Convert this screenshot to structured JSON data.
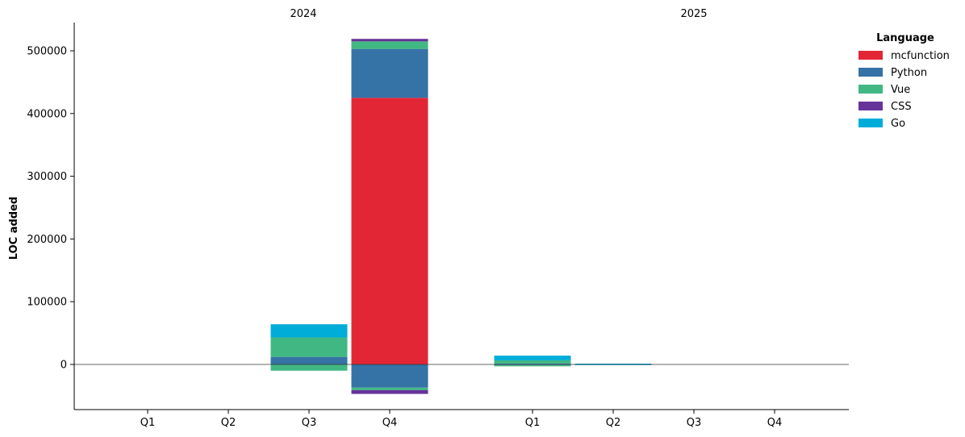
{
  "chart_data": {
    "type": "bar",
    "stacked": true,
    "diverging": true,
    "ylabel": "LOC added",
    "ylim": [
      -72000,
      545000
    ],
    "y_ticks": [
      0,
      100000,
      200000,
      300000,
      400000,
      500000
    ],
    "grid": false,
    "groups": [
      {
        "label": "2024",
        "categories": [
          "Q1",
          "Q2",
          "Q3",
          "Q4"
        ],
        "series": [
          {
            "name": "mcfunction",
            "positive": [
              0,
              0,
              0,
              425000
            ],
            "negative": [
              0,
              0,
              0,
              0
            ]
          },
          {
            "name": "Python",
            "positive": [
              0,
              0,
              12000,
              78000
            ],
            "negative": [
              0,
              0,
              0,
              -37000
            ]
          },
          {
            "name": "Vue",
            "positive": [
              0,
              0,
              31000,
              12000
            ],
            "negative": [
              0,
              0,
              -10000,
              -4000
            ]
          },
          {
            "name": "CSS",
            "positive": [
              0,
              0,
              0,
              4000
            ],
            "negative": [
              0,
              0,
              0,
              -6000
            ]
          },
          {
            "name": "Go",
            "positive": [
              0,
              0,
              21000,
              0
            ],
            "negative": [
              0,
              0,
              0,
              0
            ]
          }
        ]
      },
      {
        "label": "2025",
        "categories": [
          "Q1",
          "Q2",
          "Q3",
          "Q4"
        ],
        "series": [
          {
            "name": "mcfunction",
            "positive": [
              0,
              0,
              0,
              0
            ],
            "negative": [
              0,
              0,
              0,
              0
            ]
          },
          {
            "name": "Python",
            "positive": [
              1500,
              0,
              0,
              0
            ],
            "negative": [
              -1000,
              0,
              0,
              0
            ]
          },
          {
            "name": "Vue",
            "positive": [
              5000,
              0,
              0,
              0
            ],
            "negative": [
              -2000,
              0,
              0,
              0
            ]
          },
          {
            "name": "CSS",
            "positive": [
              0,
              0,
              0,
              0
            ],
            "negative": [
              0,
              0,
              0,
              0
            ]
          },
          {
            "name": "Go",
            "positive": [
              7500,
              1200,
              0,
              0
            ],
            "negative": [
              0,
              -300,
              0,
              0
            ]
          }
        ]
      }
    ],
    "legend": {
      "title": "Language",
      "placement": "top-right",
      "entries": [
        "mcfunction",
        "Python",
        "Vue",
        "CSS",
        "Go"
      ]
    },
    "colors": {
      "mcfunction": "#e32636",
      "Python": "#3572a5",
      "Vue": "#41b883",
      "CSS": "#663399",
      "Go": "#00add8"
    }
  }
}
